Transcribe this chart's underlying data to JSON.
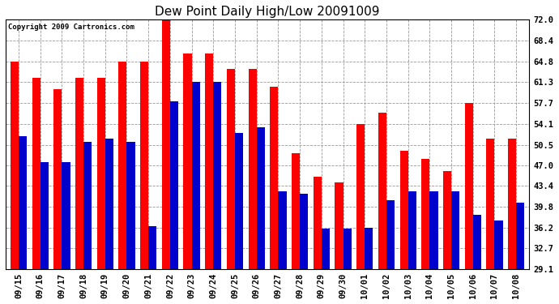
{
  "title": "Dew Point Daily High/Low 20091009",
  "copyright": "Copyright 2009 Cartronics.com",
  "yticks": [
    29.1,
    32.7,
    36.2,
    39.8,
    43.4,
    47.0,
    50.5,
    54.1,
    57.7,
    61.3,
    64.8,
    68.4,
    72.0
  ],
  "ymin": 29.1,
  "ymax": 72.0,
  "dates": [
    "09/15",
    "09/16",
    "09/17",
    "09/18",
    "09/19",
    "09/20",
    "09/21",
    "09/22",
    "09/23",
    "09/24",
    "09/25",
    "09/26",
    "09/27",
    "09/28",
    "09/29",
    "09/30",
    "10/01",
    "10/02",
    "10/03",
    "10/04",
    "10/05",
    "10/06",
    "10/07",
    "10/08"
  ],
  "highs": [
    64.8,
    62.0,
    60.0,
    62.0,
    62.0,
    64.8,
    64.8,
    72.0,
    66.2,
    66.2,
    63.5,
    63.5,
    60.5,
    49.0,
    45.0,
    44.0,
    54.1,
    56.0,
    49.5,
    48.0,
    46.0,
    57.7,
    51.5,
    51.5
  ],
  "lows": [
    52.0,
    47.5,
    47.5,
    51.0,
    51.5,
    51.0,
    36.5,
    58.0,
    61.3,
    61.3,
    52.5,
    53.5,
    42.5,
    42.0,
    36.0,
    36.0,
    36.2,
    41.0,
    42.5,
    42.5,
    42.5,
    38.5,
    37.5,
    40.5
  ],
  "bar_width": 0.38,
  "high_color": "#ff0000",
  "low_color": "#0000cc",
  "bg_color": "#ffffff",
  "grid_color": "#999999",
  "title_fontsize": 11,
  "tick_fontsize": 7.5,
  "copyright_fontsize": 6.5
}
